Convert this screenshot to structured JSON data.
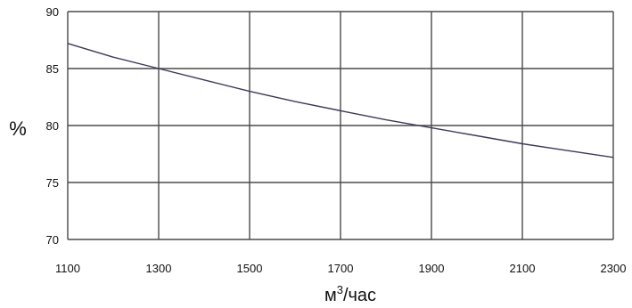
{
  "chart_data": {
    "type": "line",
    "title": "",
    "xlabel": "м",
    "xlabel_sup": "3",
    "xlabel_suffix": "/час",
    "ylabel": "%",
    "xlim": [
      1100,
      2300
    ],
    "ylim": [
      70,
      90
    ],
    "x_ticks": [
      1100,
      1300,
      1500,
      1700,
      1900,
      2100,
      2300
    ],
    "y_ticks": [
      70,
      75,
      80,
      85,
      90
    ],
    "x_tick_labels": [
      "1100",
      "1300",
      "1500",
      "1700",
      "1900",
      "2100",
      "2300"
    ],
    "y_tick_labels": [
      "70",
      "75",
      "80",
      "85",
      "90"
    ],
    "grid": true,
    "legend": "none",
    "line_color": "#3a3a5a",
    "grid_color": "#4a4a4a",
    "series": [
      {
        "x": [
          1100,
          1200,
          1300,
          1400,
          1500,
          1600,
          1700,
          1800,
          1900,
          2000,
          2100,
          2200,
          2300
        ],
        "values": [
          87.2,
          86.0,
          85.0,
          84.0,
          83.0,
          82.1,
          81.3,
          80.5,
          79.8,
          79.1,
          78.4,
          77.8,
          77.2
        ]
      }
    ]
  }
}
